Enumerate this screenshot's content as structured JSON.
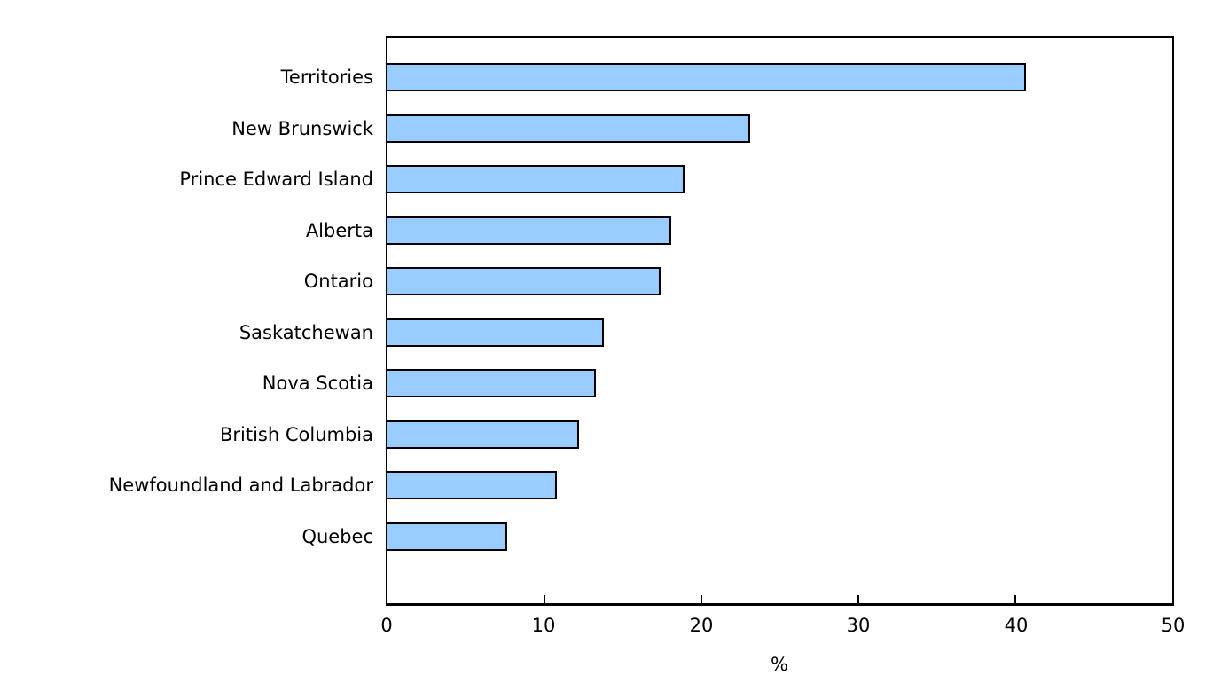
{
  "chart_data": {
    "type": "bar",
    "orientation": "horizontal",
    "title": "",
    "categories": [
      "Territories",
      "New Brunswick",
      "Prince Edward Island",
      "Alberta",
      "Ontario",
      "Saskatchewan",
      "Nova Scotia",
      "British Columbia",
      "Newfoundland and Labrador",
      "Quebec"
    ],
    "values": [
      40.7,
      23.1,
      18.9,
      18.1,
      17.4,
      13.8,
      13.3,
      12.2,
      10.8,
      7.6
    ],
    "xlabel": "%",
    "xlim": [
      0,
      50
    ],
    "xticks": [
      0,
      10,
      20,
      30,
      40,
      50
    ],
    "grid": false,
    "legend": false,
    "bar_color": "#99CCFF",
    "bar_border_color": "#000000",
    "axis_color": "#000000"
  }
}
